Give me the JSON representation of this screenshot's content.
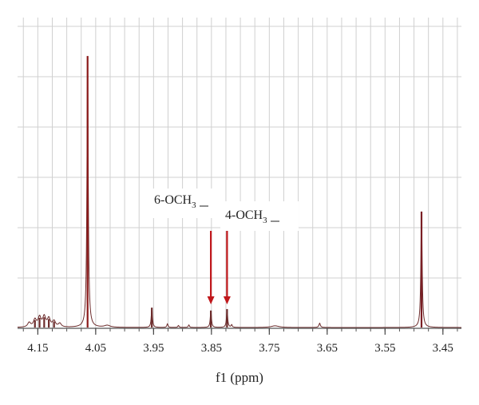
{
  "chart_data": {
    "type": "line",
    "xlabel": "f1 (ppm)",
    "ylabel": "",
    "x_reversed": true,
    "xlim": [
      4.185,
      3.418
    ],
    "ylim": [
      0,
      1.0
    ],
    "grid": true,
    "xticks": [
      4.15,
      4.05,
      3.95,
      3.85,
      3.75,
      3.65,
      3.55,
      3.45
    ],
    "xtick_labels": [
      "4.15",
      "4.05",
      "3.95",
      "3.85",
      "3.75",
      "3.65",
      "3.55",
      "3.45"
    ],
    "line_color": "#6b2a2a",
    "peaks": [
      {
        "x": 4.064,
        "y": 0.96,
        "w": 0.0013,
        "color": "#8b1a1a"
      },
      {
        "x": 3.487,
        "y": 0.41,
        "w": 0.0013,
        "color": "#7a1e24"
      },
      {
        "x": 3.953,
        "y": 0.07,
        "w": 0.0012,
        "color": "#6b2a2a"
      },
      {
        "x": 3.851,
        "y": 0.06,
        "w": 0.0012,
        "color": "#6b2a2a"
      },
      {
        "x": 3.823,
        "y": 0.065,
        "w": 0.0012,
        "color": "#6b2a2a"
      },
      {
        "x": 3.663,
        "y": 0.015,
        "w": 0.0015,
        "color": "#6b2a2a"
      },
      {
        "x": 3.926,
        "y": 0.013,
        "w": 0.0012,
        "color": "#6b2a2a"
      },
      {
        "x": 3.907,
        "y": 0.007,
        "w": 0.0012,
        "color": "#6b2a2a"
      },
      {
        "x": 3.889,
        "y": 0.009,
        "w": 0.0012,
        "color": "#6b2a2a"
      },
      {
        "x": 3.815,
        "y": 0.009,
        "w": 0.0012,
        "color": "#6b2a2a"
      },
      {
        "x": 4.165,
        "y": 0.016,
        "w": 0.003,
        "color": "#6b2a2a"
      },
      {
        "x": 4.155,
        "y": 0.026,
        "w": 0.003,
        "color": "#6b2a2a"
      },
      {
        "x": 4.147,
        "y": 0.034,
        "w": 0.003,
        "color": "#6b2a2a"
      },
      {
        "x": 4.139,
        "y": 0.036,
        "w": 0.003,
        "color": "#6b2a2a"
      },
      {
        "x": 4.131,
        "y": 0.03,
        "w": 0.003,
        "color": "#6b2a2a"
      },
      {
        "x": 4.122,
        "y": 0.021,
        "w": 0.003,
        "color": "#6b2a2a"
      },
      {
        "x": 4.112,
        "y": 0.013,
        "w": 0.003,
        "color": "#6b2a2a"
      },
      {
        "x": 4.03,
        "y": 0.007,
        "w": 0.006,
        "color": "#6b2a2a"
      },
      {
        "x": 3.74,
        "y": 0.006,
        "w": 0.008,
        "color": "#6b2a2a"
      }
    ],
    "annotations": [
      {
        "text": "6-OCH",
        "subscript": "3",
        "x": 3.851,
        "arrow_color": "#c0171b"
      },
      {
        "text": "4-OCH",
        "subscript": "3",
        "x": 3.823,
        "arrow_color": "#c0171b"
      }
    ]
  }
}
